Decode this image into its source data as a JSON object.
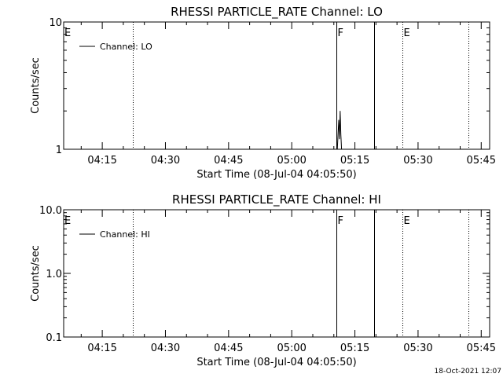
{
  "footer": {
    "timestamp": "18-Oct-2021 12:07"
  },
  "chart_data": [
    {
      "type": "line",
      "title": "RHESSI PARTICLE_RATE Channel: LO",
      "xlabel": "Start Time (08-Jul-04 04:05:50)",
      "ylabel": "Counts/sec",
      "yscale": "log",
      "ylim": [
        1,
        10
      ],
      "y_ticks": [
        {
          "value": 1,
          "label": "1"
        },
        {
          "value": 10,
          "label": "10"
        }
      ],
      "xlim": [
        "04:05:50",
        "05:47:00"
      ],
      "x_ticks": [
        "04:15",
        "04:30",
        "04:45",
        "05:00",
        "05:15",
        "05:30",
        "05:45"
      ],
      "legend": {
        "entries": [
          "Channel: LO"
        ],
        "placement": "top-left"
      },
      "series": [
        {
          "name": "Channel: LO",
          "x": [
            "05:10:50",
            "05:11:00",
            "05:11:10",
            "05:11:20",
            "05:11:30",
            "05:11:40",
            "05:11:50"
          ],
          "y": [
            1,
            1.3,
            1.7,
            1.2,
            2.0,
            1.3,
            1
          ]
        }
      ],
      "markers": [
        {
          "time": "04:22:10",
          "style": "dotted",
          "label": ""
        },
        {
          "time": "05:10:40",
          "style": "solid",
          "label": "F"
        },
        {
          "time": "05:19:30",
          "style": "solid",
          "label": ""
        },
        {
          "time": "05:26:20",
          "style": "dotted",
          "label": "E"
        },
        {
          "time": "05:42:00",
          "style": "dotted",
          "label": ""
        }
      ],
      "edge_label": "E"
    },
    {
      "type": "line",
      "title": "RHESSI PARTICLE_RATE Channel: HI",
      "xlabel": "Start Time (08-Jul-04 04:05:50)",
      "ylabel": "Counts/sec",
      "yscale": "log",
      "ylim": [
        0.1,
        10
      ],
      "y_ticks": [
        {
          "value": 0.1,
          "label": "0.1"
        },
        {
          "value": 1,
          "label": "1.0"
        },
        {
          "value": 10,
          "label": "10.0"
        }
      ],
      "xlim": [
        "04:05:50",
        "05:47:00"
      ],
      "x_ticks": [
        "04:15",
        "04:30",
        "04:45",
        "05:00",
        "05:15",
        "05:30",
        "05:45"
      ],
      "legend": {
        "entries": [
          "Channel: HI"
        ],
        "placement": "top-left"
      },
      "series": [
        {
          "name": "Channel: HI",
          "x": [],
          "y": []
        }
      ],
      "markers": [
        {
          "time": "04:22:10",
          "style": "dotted",
          "label": ""
        },
        {
          "time": "05:10:40",
          "style": "solid",
          "label": "F"
        },
        {
          "time": "05:19:30",
          "style": "solid",
          "label": ""
        },
        {
          "time": "05:26:20",
          "style": "dotted",
          "label": "E"
        },
        {
          "time": "05:42:00",
          "style": "dotted",
          "label": ""
        }
      ],
      "edge_label": "E"
    }
  ]
}
